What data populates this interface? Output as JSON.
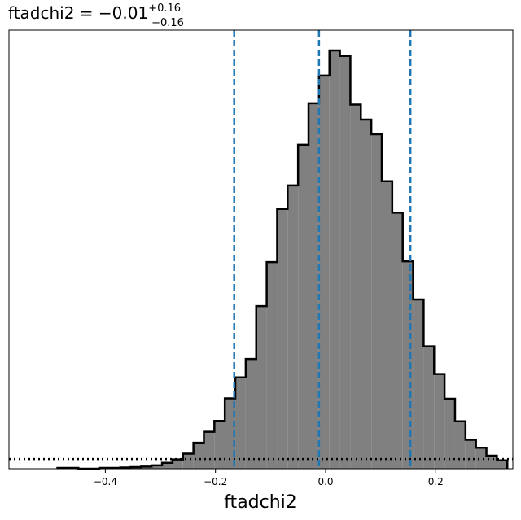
{
  "chart_data": {
    "type": "histogram",
    "title": {
      "name": "ftadchi2",
      "equals": " = ",
      "median": "−0.01",
      "upper_err": "+0.16",
      "lower_err": "−0.16"
    },
    "xlabel": "ftadchi2",
    "xlim": [
      -0.575,
      0.34
    ],
    "ylim": [
      0,
      1.0
    ],
    "xticks": [
      -0.4,
      -0.2,
      0.0,
      0.2
    ],
    "xtick_labels": [
      "−0.4",
      "−0.2",
      "0.0",
      "0.2"
    ],
    "bin_edges": [
      -0.487,
      -0.468,
      -0.449,
      -0.43,
      -0.411,
      -0.392,
      -0.373,
      -0.354,
      -0.335,
      -0.316,
      -0.297,
      -0.278,
      -0.259,
      -0.24,
      -0.221,
      -0.202,
      -0.183,
      -0.164,
      -0.145,
      -0.126,
      -0.107,
      -0.088,
      -0.069,
      -0.05,
      -0.031,
      -0.012,
      0.007,
      0.026,
      0.045,
      0.064,
      0.083,
      0.102,
      0.121,
      0.14,
      0.159,
      0.178,
      0.197,
      0.216,
      0.235,
      0.254,
      0.273,
      0.292,
      0.311,
      0.33
    ],
    "counts": [
      0.002,
      0.002,
      0.0,
      0.0,
      0.002,
      0.002,
      0.003,
      0.004,
      0.005,
      0.008,
      0.014,
      0.022,
      0.036,
      0.062,
      0.088,
      0.114,
      0.168,
      0.218,
      0.262,
      0.388,
      0.493,
      0.62,
      0.676,
      0.773,
      0.872,
      0.938,
      0.998,
      0.985,
      0.869,
      0.833,
      0.798,
      0.686,
      0.611,
      0.495,
      0.404,
      0.292,
      0.226,
      0.167,
      0.113,
      0.069,
      0.05,
      0.031,
      0.02
    ],
    "fill_color": "#808080",
    "edge_color": "#000000",
    "quantile_lines": [
      -0.166,
      -0.012,
      0.154
    ],
    "quantile_color": "#1f77b4",
    "prior_level": 0.023,
    "prior_style": "dotted"
  }
}
